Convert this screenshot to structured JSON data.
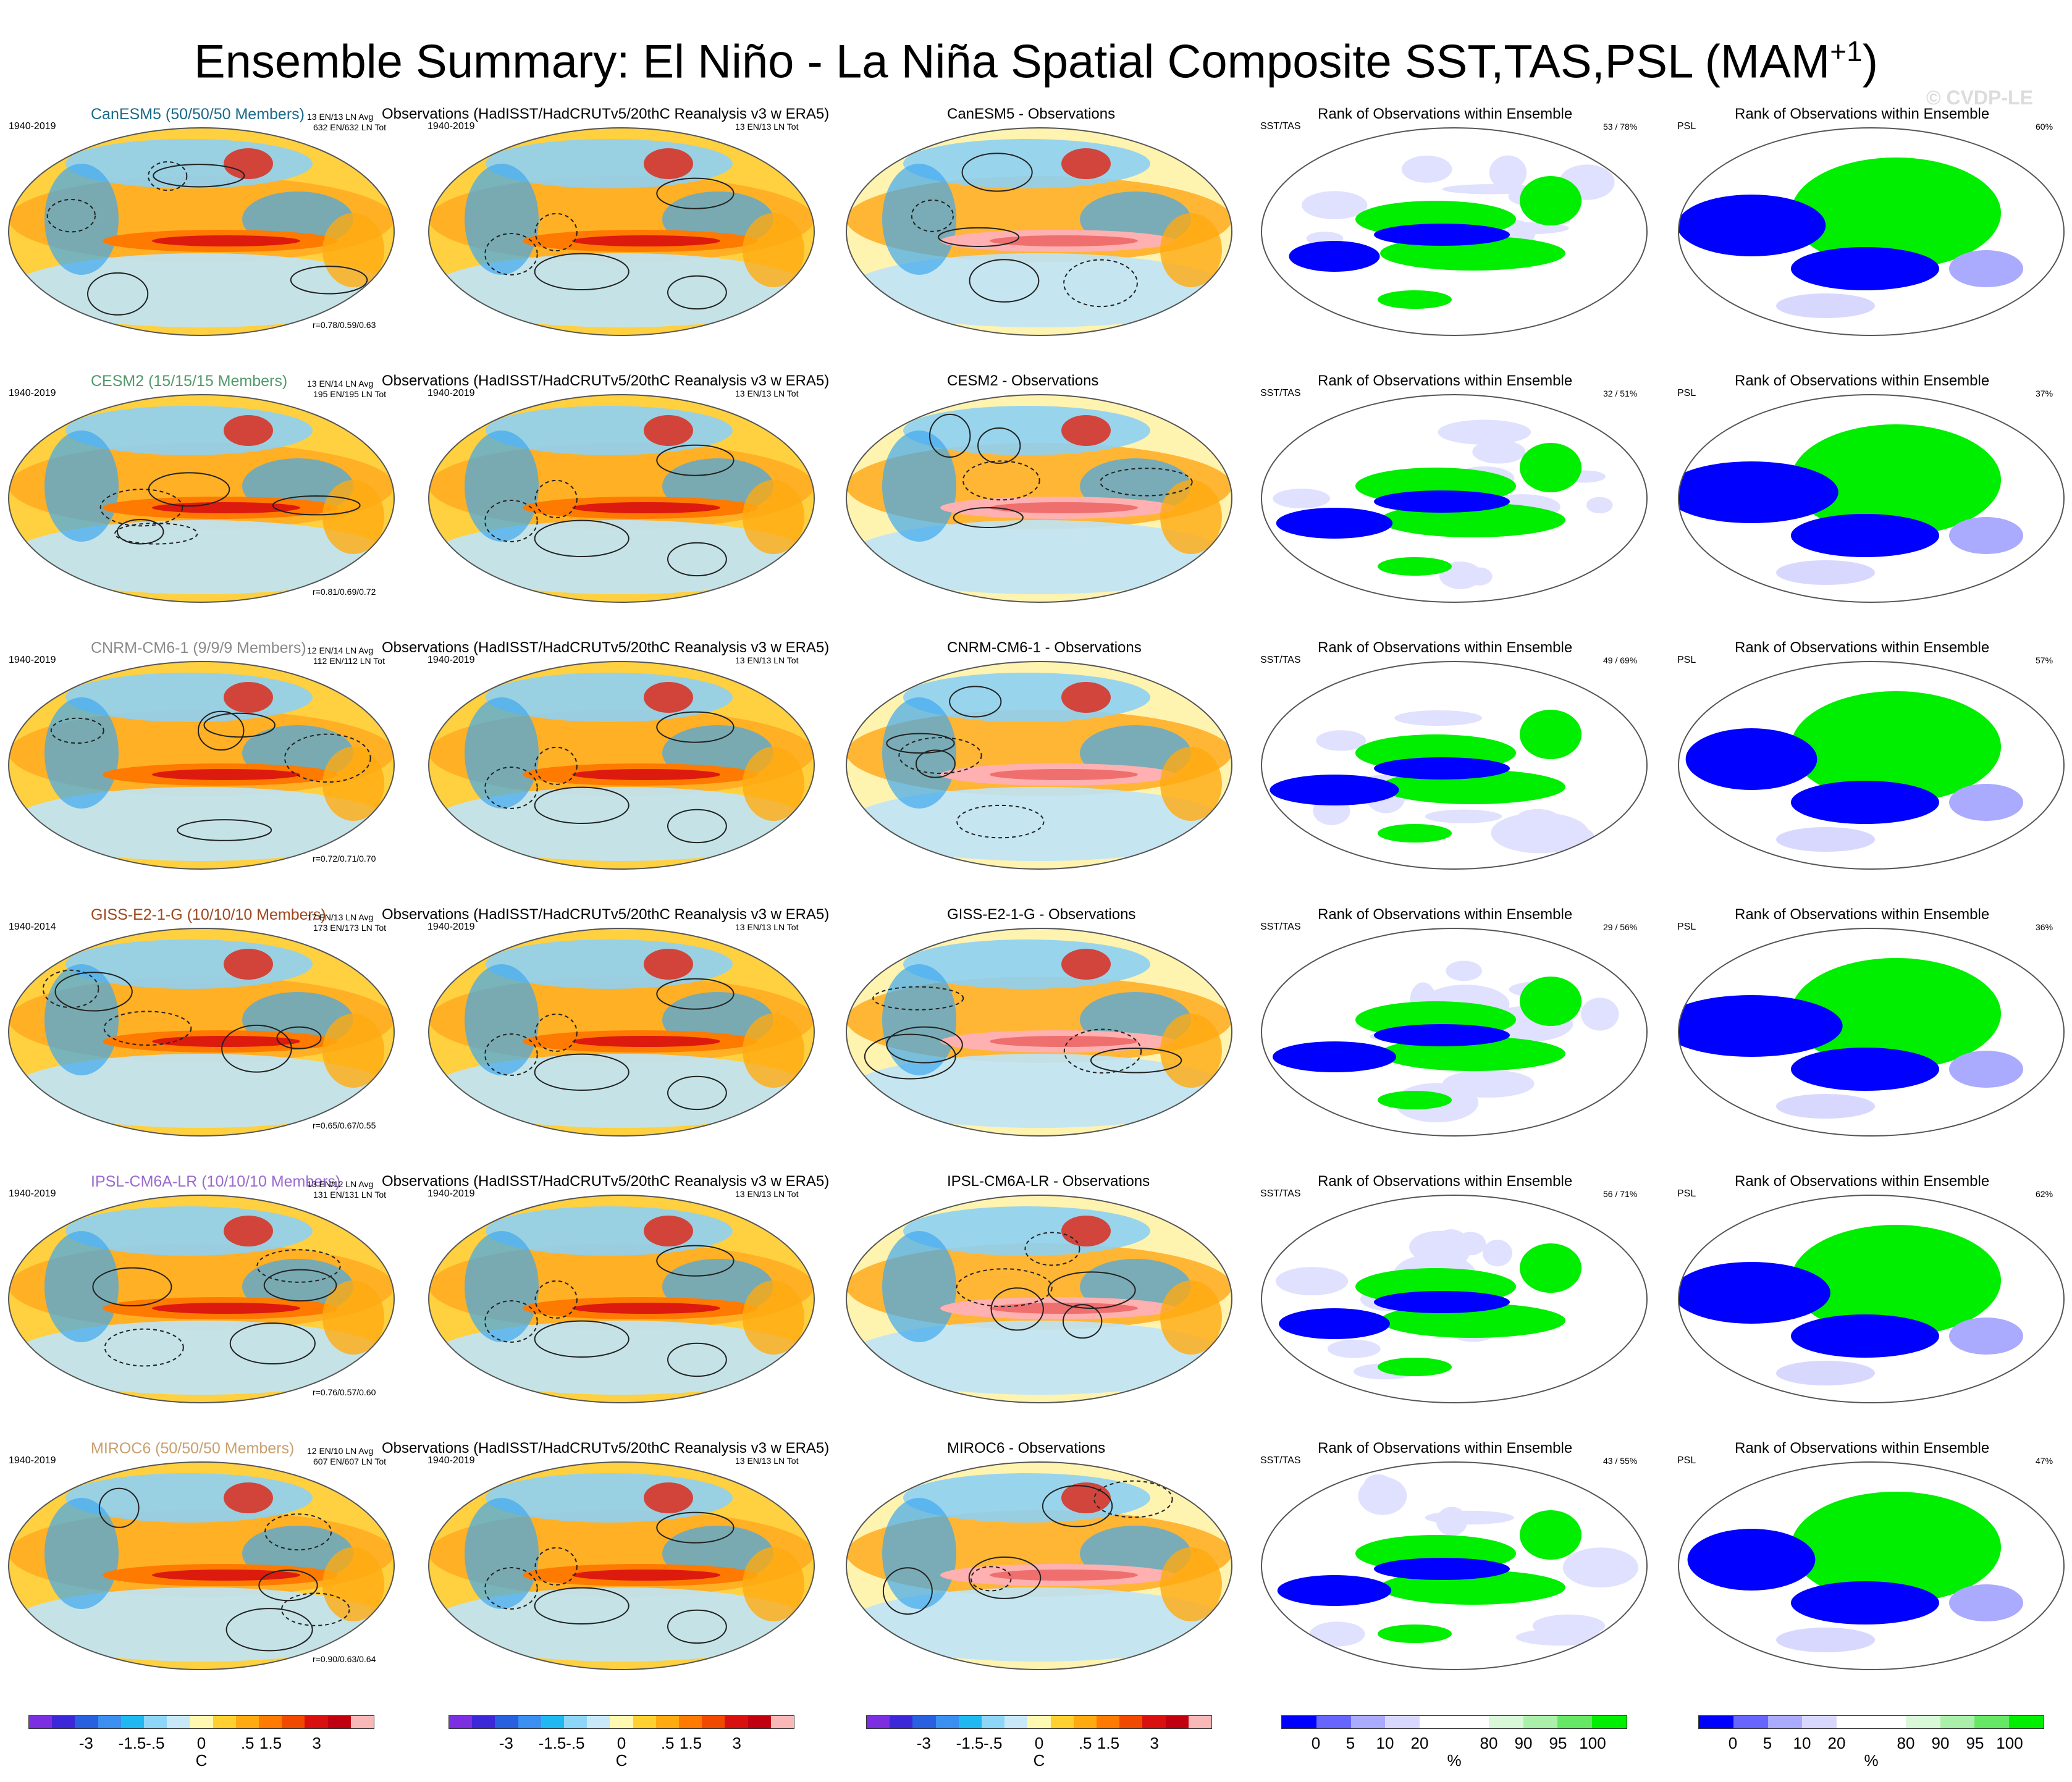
{
  "title": "Ensemble Summary: El Niño - La Niña Spatial Composite SST,TAS,PSL (MAM",
  "title_sup": "+1",
  "watermark": "© CVDP-LE",
  "colors": {
    "model": [
      "#1a6a8a",
      "#4f9a6a",
      "#8a8a8a",
      "#a0461c",
      "#9a6ad0",
      "#c9a06e"
    ],
    "diverging": [
      "#7b2fe0",
      "#3c28d8",
      "#2860e0",
      "#3a8ff0",
      "#20b8f0",
      "#8ed6f8",
      "#c8e8f8",
      "#fff8b0",
      "#ffd030",
      "#ffaa10",
      "#ff7a00",
      "#f04a00",
      "#d81010",
      "#c00010",
      "#f8b8b8"
    ],
    "rank": [
      "#0000ff",
      "#6666ff",
      "#aaaaff",
      "#d8d8ff",
      "#ffffff",
      "#ffffff",
      "#d8f8d8",
      "#aaf0aa",
      "#66e866",
      "#00ee00"
    ]
  },
  "rows": [
    {
      "model_label": "CanESM5 (50/50/50 Members)",
      "years": "1940-2019",
      "counts_1": "13 EN/13 LN Avg",
      "counts_2": "632 EN/632 LN Tot",
      "r_value": "r=0.78/0.59/0.63",
      "diff_title": "CanESM5 - Observations",
      "rank_pct_sst": "53 /  78%",
      "rank_pct_psl": "60%"
    },
    {
      "model_label": "CESM2 (15/15/15 Members)",
      "years": "1940-2019",
      "counts_1": "13 EN/14 LN Avg",
      "counts_2": "195 EN/195 LN Tot",
      "r_value": "r=0.81/0.69/0.72",
      "diff_title": "CESM2 - Observations",
      "rank_pct_sst": "32 /  51%",
      "rank_pct_psl": "37%"
    },
    {
      "model_label": "CNRM-CM6-1 (9/9/9 Members)",
      "years": "1940-2019",
      "counts_1": "12 EN/14 LN Avg",
      "counts_2": "112 EN/112 LN Tot",
      "r_value": "r=0.72/0.71/0.70",
      "diff_title": "CNRM-CM6-1 - Observations",
      "rank_pct_sst": "49 /  69%",
      "rank_pct_psl": "57%"
    },
    {
      "model_label": "GISS-E2-1-G (10/10/10 Members)",
      "years": "1940-2014",
      "counts_1": "17 EN/13 LN Avg",
      "counts_2": "173 EN/173 LN Tot",
      "r_value": "r=0.65/0.67/0.55",
      "diff_title": "GISS-E2-1-G - Observations",
      "rank_pct_sst": "29 /  56%",
      "rank_pct_psl": "36%"
    },
    {
      "model_label": "IPSL-CM6A-LR (10/10/10 Members)",
      "years": "1940-2019",
      "counts_1": "13 EN/12 LN Avg",
      "counts_2": "131 EN/131 LN Tot",
      "r_value": "r=0.76/0.57/0.60",
      "diff_title": "IPSL-CM6A-LR - Observations",
      "rank_pct_sst": "56 /  71%",
      "rank_pct_psl": "62%"
    },
    {
      "model_label": "MIROC6 (50/50/50 Members)",
      "years": "1940-2019",
      "counts_1": "12 EN/10 LN Avg",
      "counts_2": "607 EN/607 LN Tot",
      "r_value": "r=0.90/0.63/0.64",
      "diff_title": "MIROC6 - Observations",
      "rank_pct_sst": "43 /  55%",
      "rank_pct_psl": "47%"
    }
  ],
  "obs": {
    "title": "Observations (HadISST/HadCRUTv5/20thC Reanalysis v3 w ERA5)",
    "years": "1940-2019",
    "counts": "13 EN/13 LN Tot"
  },
  "rank": {
    "title": "Rank of Observations within Ensemble",
    "sst_label": "SST/TAS",
    "psl_label": "PSL"
  },
  "colorbars": {
    "temp_ticks": [
      "-3",
      "-1.5",
      "-.5",
      "0",
      ".5",
      "1.5",
      "3"
    ],
    "temp_unit": "C",
    "rank_ticks": [
      "0",
      "5",
      "10",
      "20",
      "80",
      "90",
      "95",
      "100"
    ],
    "rank_unit": "%"
  }
}
